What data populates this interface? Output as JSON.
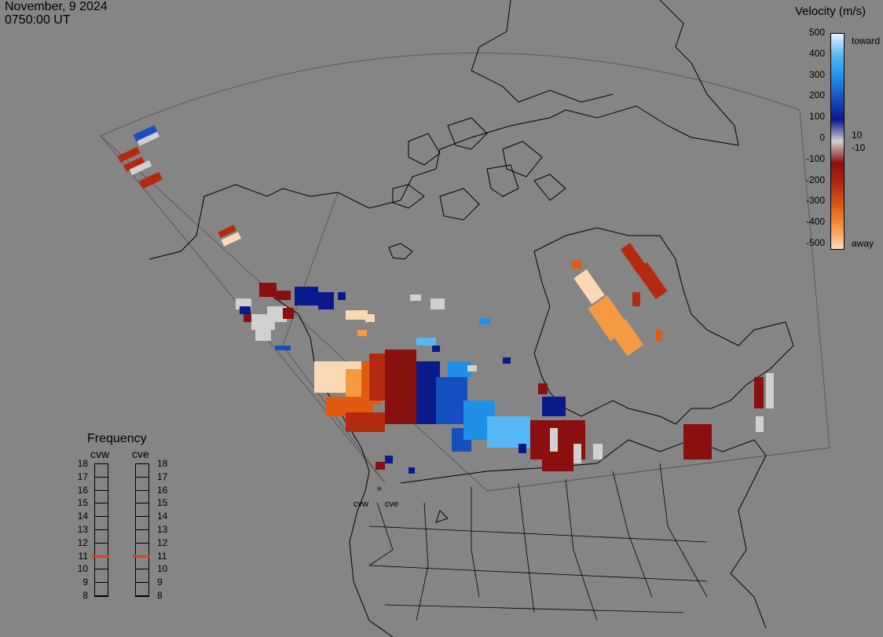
{
  "header": {
    "date": "November, 9 2024",
    "time": "0750:00 UT"
  },
  "colorbar": {
    "title": "Velocity (m/s)",
    "ticks": [
      "500",
      "400",
      "300",
      "200",
      "100",
      "0",
      "-100",
      "-200",
      "-300",
      "-400",
      "-500"
    ],
    "inner_labels": [
      "10",
      "-10"
    ],
    "toward_label": "toward",
    "away_label": "away",
    "colors": [
      "#e6f4ff",
      "#55b8f5",
      "#1f8fe8",
      "#1650c0",
      "#0a1a8c",
      "#d0d0d0",
      "#8a0f0f",
      "#b42a10",
      "#e05a10",
      "#f59a40",
      "#fcd9b6"
    ]
  },
  "frequency": {
    "title": "Frequency",
    "radars": [
      "cvw",
      "cve"
    ],
    "levels": [
      "18",
      "17",
      "16",
      "15",
      "14",
      "13",
      "12",
      "11",
      "10",
      "9",
      "8"
    ],
    "current": {
      "cvw": 11,
      "cve": 11
    },
    "marker_color": "#e8401c"
  },
  "map_labels": {
    "cvw": "cvw",
    "cve": "cve"
  }
}
